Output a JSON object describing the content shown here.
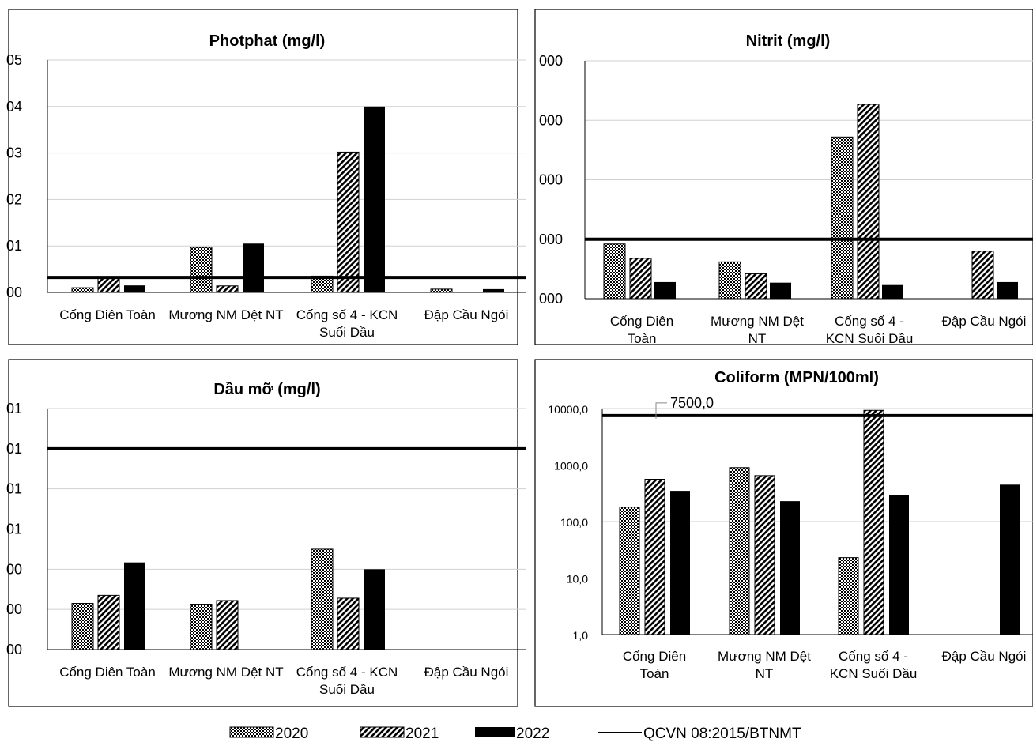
{
  "legend": {
    "items": [
      {
        "label": "2020",
        "pattern": "dots"
      },
      {
        "label": "2021",
        "pattern": "diag"
      },
      {
        "label": "2022",
        "pattern": "solid"
      },
      {
        "label": "QCVN 08:2015/BTNMT",
        "pattern": "line"
      }
    ]
  },
  "chart_data": [
    {
      "type": "bar",
      "title": "Photphat (mg/l)",
      "categories": [
        "Cống Diên Toàn",
        "Mương NM Dệt NT",
        "Cống số 4 - KCN Suối Dầu",
        "Đập Cầu Ngói"
      ],
      "y_tick_labels": [
        "00",
        "01",
        "02",
        "03",
        "04",
        "05"
      ],
      "ylim": [
        0,
        5
      ],
      "series": [
        {
          "name": "2020",
          "values": [
            0.1,
            0.97,
            0.35,
            0.07
          ]
        },
        {
          "name": "2021",
          "values": [
            0.3,
            0.14,
            3.02,
            null
          ]
        },
        {
          "name": "2022",
          "values": [
            0.15,
            1.05,
            4.0,
            0.07
          ]
        }
      ],
      "threshold": 0.32,
      "grid": true,
      "legend": "bottom"
    },
    {
      "type": "bar",
      "title": "Nitrit (mg/l)",
      "categories": [
        "Cống Diên Toàn",
        "Mương NM Dệt NT",
        "Cống số 4 - KCN Suối Dầu",
        "Đập Cầu Ngói"
      ],
      "y_tick_labels": [
        "000",
        "000",
        "000",
        "000",
        "000"
      ],
      "ylim": [
        0,
        4
      ],
      "series": [
        {
          "name": "2020",
          "values": [
            0.92,
            0.62,
            2.72,
            null
          ]
        },
        {
          "name": "2021",
          "values": [
            0.68,
            0.42,
            3.27,
            0.8
          ]
        },
        {
          "name": "2022",
          "values": [
            0.28,
            0.27,
            0.23,
            0.28
          ]
        }
      ],
      "threshold": 1.0,
      "grid": true,
      "legend": "bottom"
    },
    {
      "type": "bar",
      "title": "Dầu mỡ (mg/l)",
      "categories": [
        "Cống Diên Toàn",
        "Mương NM Dệt NT",
        "Cống số 4 - KCN Suối Dầu",
        "Đập Cầu Ngói"
      ],
      "y_tick_labels": [
        "00",
        "00",
        "00",
        "01",
        "01",
        "01",
        "01"
      ],
      "ylim": [
        0,
        6
      ],
      "series": [
        {
          "name": "2020",
          "values": [
            1.15,
            1.13,
            2.5,
            null
          ]
        },
        {
          "name": "2021",
          "values": [
            1.35,
            1.22,
            1.28,
            null
          ]
        },
        {
          "name": "2022",
          "values": [
            2.17,
            null,
            2.0,
            null
          ]
        }
      ],
      "threshold": 5.0,
      "grid": true,
      "legend": "bottom"
    },
    {
      "type": "bar",
      "title": "Coliform (MPN/100ml)",
      "categories": [
        "Cống Diên Toàn",
        "Mương NM Dệt NT",
        "Cống số 4 - KCN Suối Dầu",
        "Đập Cầu Ngói"
      ],
      "y_tick_labels": [
        "1,0",
        "10,0",
        "100,0",
        "1000,0",
        "10000,0"
      ],
      "y_scale": "log",
      "ylim": [
        1,
        10000
      ],
      "series": [
        {
          "name": "2020",
          "values": [
            180,
            900,
            23,
            null
          ]
        },
        {
          "name": "2021",
          "values": [
            560,
            650,
            9300,
            1
          ]
        },
        {
          "name": "2022",
          "values": [
            350,
            230,
            290,
            450
          ]
        }
      ],
      "threshold": 7500,
      "annotation": "7500,0",
      "grid": true,
      "legend": "bottom"
    }
  ]
}
